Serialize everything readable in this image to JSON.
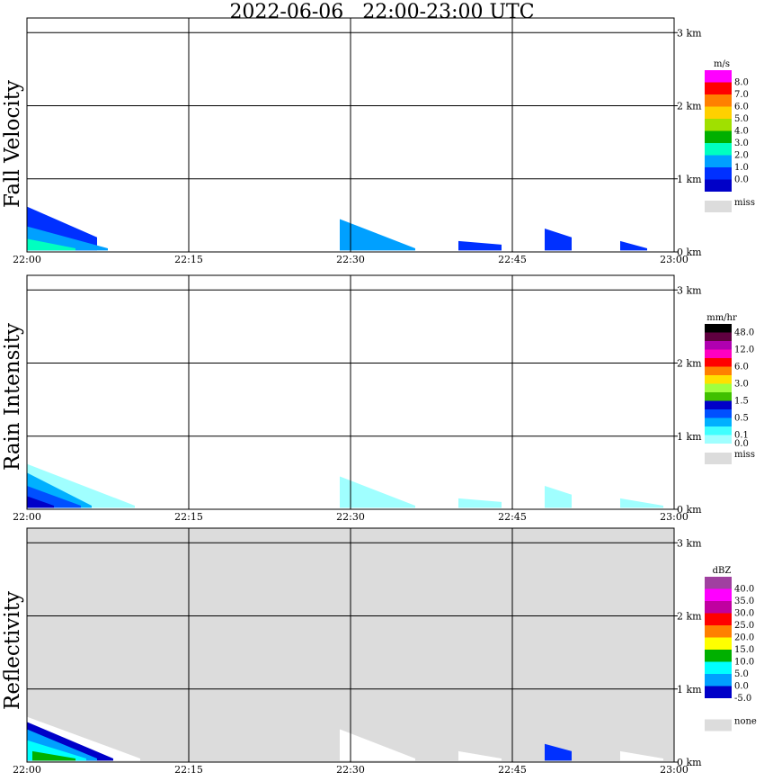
{
  "title": "2022-06-06   22:00-23:00 UTC",
  "chart_data": [
    {
      "type": "heatmap",
      "ylabel": "Fall Velocity",
      "units": "m/s",
      "background": "#ffffff",
      "x_ticks": [
        "22:00",
        "22:15",
        "22:30",
        "22:45",
        "23:00"
      ],
      "y_ticks": [
        "0 km",
        "1 km",
        "2 km",
        "3 km"
      ],
      "xlim_minutes": [
        0,
        60
      ],
      "ylim_km": [
        0,
        3.2
      ],
      "grid": true,
      "legend_position": "right",
      "legend": [
        {
          "label": "8.0",
          "color": "#ff00ff"
        },
        {
          "label": "7.0",
          "color": "#ff0000"
        },
        {
          "label": "6.0",
          "color": "#ff8000"
        },
        {
          "label": "5.0",
          "color": "#ffd000"
        },
        {
          "label": "4.0",
          "color": "#a0e000"
        },
        {
          "label": "3.0",
          "color": "#00b000"
        },
        {
          "label": "2.0",
          "color": "#00ffc0"
        },
        {
          "label": "1.0",
          "color": "#00a0ff"
        },
        {
          "label": "0.0",
          "color": "#0030ff"
        },
        {
          "label": "",
          "color": "#0000c8"
        }
      ],
      "miss_label": "miss",
      "echoes": [
        {
          "t0": 0,
          "t1": 6.5,
          "top_km": 0.62,
          "end_km": 0.2,
          "color": "#0030ff"
        },
        {
          "t0": 0,
          "t1": 7.5,
          "top_km": 0.35,
          "end_km": 0.05,
          "color": "#00a0ff"
        },
        {
          "t0": 0,
          "t1": 4.5,
          "top_km": 0.18,
          "end_km": 0.05,
          "color": "#00ffc0"
        },
        {
          "t0": 29,
          "t1": 36,
          "top_km": 0.45,
          "end_km": 0.05,
          "color": "#00a0ff"
        },
        {
          "t0": 40,
          "t1": 44,
          "top_km": 0.15,
          "end_km": 0.1,
          "color": "#0030ff"
        },
        {
          "t0": 48,
          "t1": 50.5,
          "top_km": 0.32,
          "end_km": 0.2,
          "color": "#0030ff"
        },
        {
          "t0": 55,
          "t1": 57.5,
          "top_km": 0.15,
          "end_km": 0.05,
          "color": "#0030ff"
        }
      ]
    },
    {
      "type": "heatmap",
      "ylabel": "Rain Intensity",
      "units": "mm/hr",
      "background": "#ffffff",
      "x_ticks": [
        "22:00",
        "22:15",
        "22:30",
        "22:45",
        "23:00"
      ],
      "y_ticks": [
        "0 km",
        "1 km",
        "2 km",
        "3 km"
      ],
      "xlim_minutes": [
        0,
        60
      ],
      "ylim_km": [
        0,
        3.2
      ],
      "grid": true,
      "legend_position": "right",
      "legend": [
        {
          "label": "48.0",
          "color": "#000000"
        },
        {
          "label": "",
          "color": "#600040"
        },
        {
          "label": "12.0",
          "color": "#b000b0"
        },
        {
          "label": "",
          "color": "#ff00c0"
        },
        {
          "label": "6.0",
          "color": "#ff0000"
        },
        {
          "label": "",
          "color": "#ff8000"
        },
        {
          "label": "3.0",
          "color": "#ffe000"
        },
        {
          "label": "",
          "color": "#a0ff40"
        },
        {
          "label": "1.5",
          "color": "#40c000"
        },
        {
          "label": "",
          "color": "#0000c8"
        },
        {
          "label": "0.5",
          "color": "#0050ff"
        },
        {
          "label": "",
          "color": "#00b0ff"
        },
        {
          "label": "0.1",
          "color": "#40ffff"
        },
        {
          "label": "0.0",
          "color": "#a0ffff"
        }
      ],
      "miss_label": "miss",
      "echoes": [
        {
          "t0": 0,
          "t1": 10,
          "top_km": 0.62,
          "end_km": 0.05,
          "color": "#a0ffff"
        },
        {
          "t0": 0,
          "t1": 6,
          "top_km": 0.5,
          "end_km": 0.05,
          "color": "#00b0ff"
        },
        {
          "t0": 0,
          "t1": 5,
          "top_km": 0.32,
          "end_km": 0.05,
          "color": "#0050ff"
        },
        {
          "t0": 0,
          "t1": 2.5,
          "top_km": 0.18,
          "end_km": 0.05,
          "color": "#0000c8"
        },
        {
          "t0": 29,
          "t1": 36,
          "top_km": 0.45,
          "end_km": 0.05,
          "color": "#a0ffff"
        },
        {
          "t0": 40,
          "t1": 44,
          "top_km": 0.15,
          "end_km": 0.1,
          "color": "#a0ffff"
        },
        {
          "t0": 48,
          "t1": 50.5,
          "top_km": 0.32,
          "end_km": 0.2,
          "color": "#a0ffff"
        },
        {
          "t0": 55,
          "t1": 59,
          "top_km": 0.15,
          "end_km": 0.05,
          "color": "#a0ffff"
        }
      ]
    },
    {
      "type": "heatmap",
      "ylabel": "Reflectivity",
      "units": "dBZ",
      "background": "#dcdcdc",
      "x_ticks": [
        "22:00",
        "22:15",
        "22:30",
        "22:45",
        "23:00"
      ],
      "y_ticks": [
        "0 km",
        "1 km",
        "2 km",
        "3 km"
      ],
      "xlim_minutes": [
        0,
        60
      ],
      "ylim_km": [
        0,
        3.2
      ],
      "grid": true,
      "legend_position": "right",
      "legend": [
        {
          "label": "40.0",
          "color": "#a040a0"
        },
        {
          "label": "35.0",
          "color": "#ff00ff"
        },
        {
          "label": "30.0",
          "color": "#c000a0"
        },
        {
          "label": "25.0",
          "color": "#ff0000"
        },
        {
          "label": "20.0",
          "color": "#ff8000"
        },
        {
          "label": "15.0",
          "color": "#ffff00"
        },
        {
          "label": "10.0",
          "color": "#00b000"
        },
        {
          "label": "5.0",
          "color": "#00ffff"
        },
        {
          "label": "0.0",
          "color": "#00a0ff"
        },
        {
          "label": "-5.0",
          "color": "#0000c8"
        },
        {
          "label": "",
          "color": "#ffffff"
        }
      ],
      "miss_label": "none",
      "echoes": [
        {
          "t0": 0,
          "t1": 10.5,
          "top_km": 0.62,
          "end_km": 0.05,
          "color": "#ffffff"
        },
        {
          "t0": 0,
          "t1": 8,
          "top_km": 0.55,
          "end_km": 0.05,
          "color": "#0000c8"
        },
        {
          "t0": 0,
          "t1": 6.5,
          "top_km": 0.45,
          "end_km": 0.05,
          "color": "#00a0ff"
        },
        {
          "t0": 0,
          "t1": 5.5,
          "top_km": 0.3,
          "end_km": 0.05,
          "color": "#00ffff"
        },
        {
          "t0": 0.5,
          "t1": 4.5,
          "top_km": 0.15,
          "end_km": 0.05,
          "color": "#00b000"
        },
        {
          "t0": 29,
          "t1": 36,
          "top_km": 0.45,
          "end_km": 0.05,
          "color": "#ffffff"
        },
        {
          "t0": 40,
          "t1": 44,
          "top_km": 0.15,
          "end_km": 0.05,
          "color": "#ffffff"
        },
        {
          "t0": 48,
          "t1": 50.5,
          "top_km": 0.25,
          "end_km": 0.15,
          "color": "#0030ff"
        },
        {
          "t0": 55,
          "t1": 59,
          "top_km": 0.15,
          "end_km": 0.05,
          "color": "#ffffff"
        }
      ]
    }
  ]
}
